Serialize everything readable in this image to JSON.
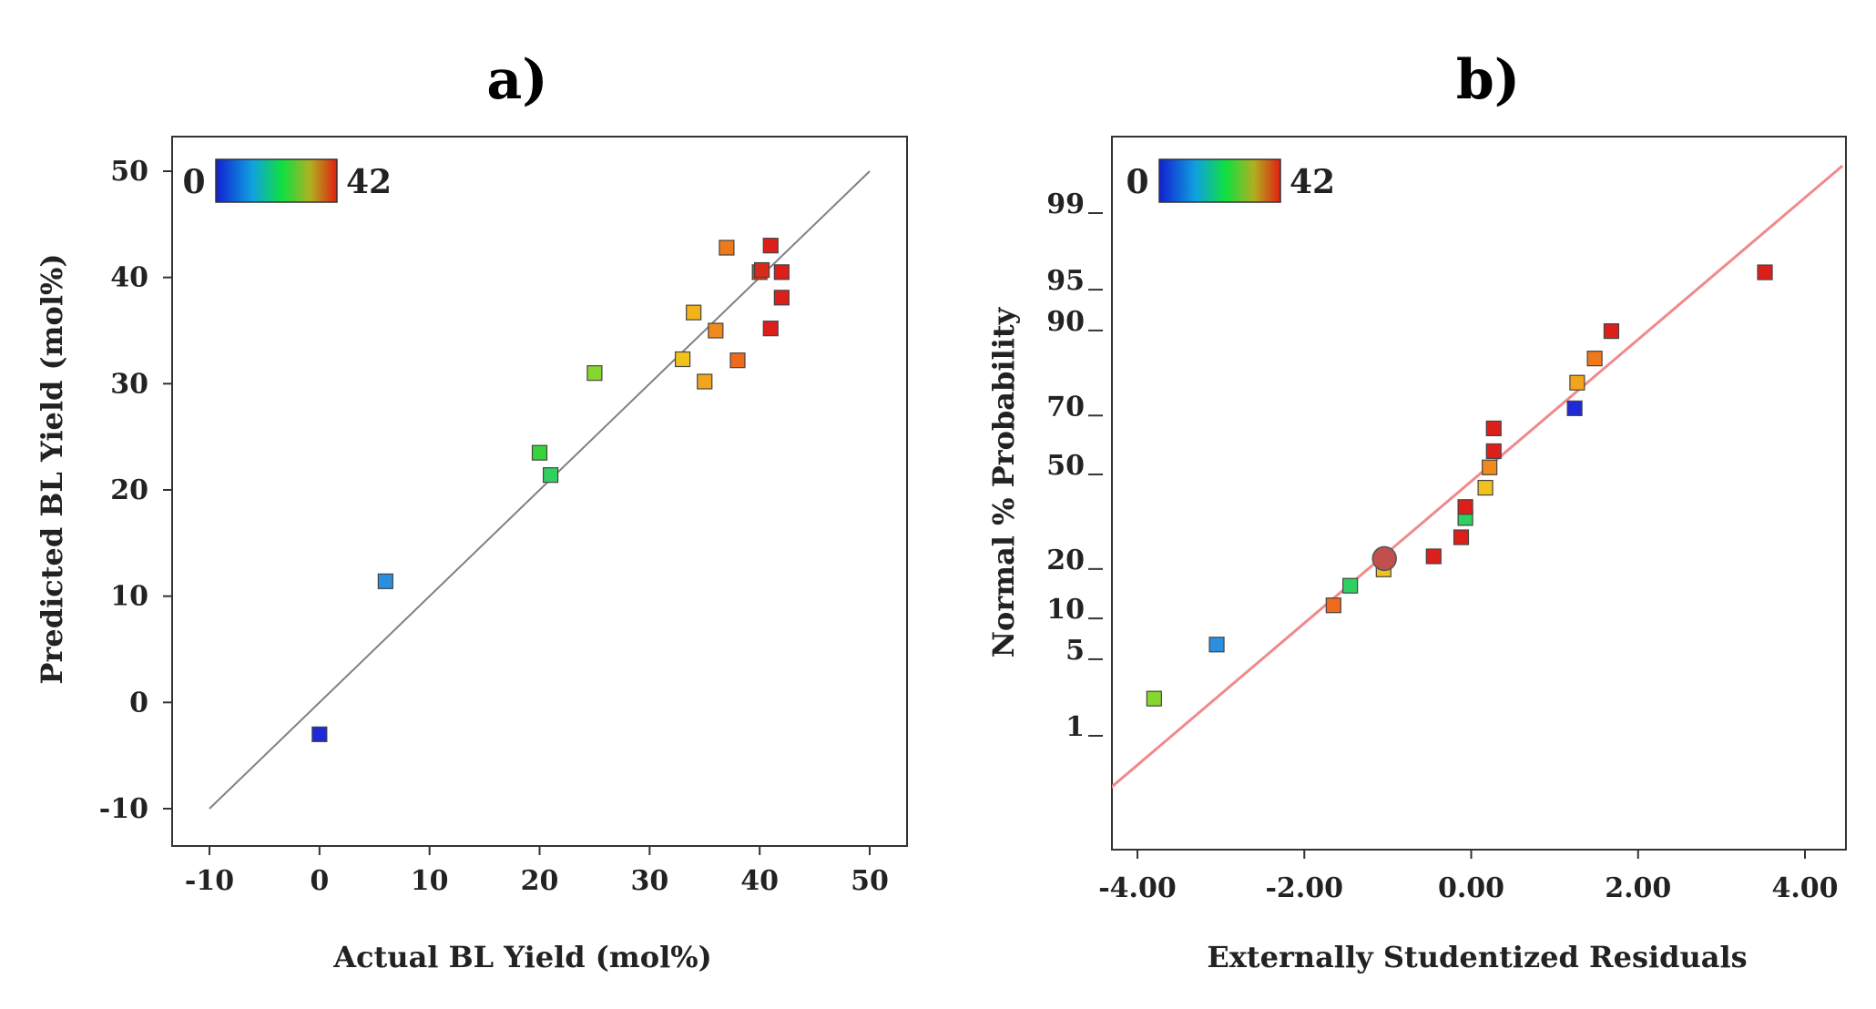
{
  "chart_data": [
    {
      "type": "scatter",
      "panel_label": "a)",
      "xlabel": "Actual BL Yield (mol%)",
      "ylabel": "Predicted BL Yield (mol%)",
      "xlim": [
        -10,
        50
      ],
      "ylim": [
        -10,
        50
      ],
      "x_ticks": [
        -10,
        0,
        10,
        20,
        30,
        40,
        50
      ],
      "y_ticks": [
        -10,
        0,
        10,
        20,
        30,
        40,
        50
      ],
      "reference_line": {
        "from": [
          -10,
          -10
        ],
        "to": [
          50,
          50
        ],
        "color": "#808080"
      },
      "colorbar": {
        "min_label": "0",
        "max_label": "42"
      },
      "points": [
        {
          "x": 0,
          "y": -3,
          "color": "#1f2ad6"
        },
        {
          "x": 6,
          "y": 11.4,
          "color": "#2a8fe0"
        },
        {
          "x": 20,
          "y": 23.5,
          "color": "#36d43a"
        },
        {
          "x": 21,
          "y": 21.4,
          "color": "#2fd060"
        },
        {
          "x": 25,
          "y": 31,
          "color": "#86d630"
        },
        {
          "x": 33,
          "y": 32.3,
          "color": "#f2c21c"
        },
        {
          "x": 34,
          "y": 36.7,
          "color": "#f0b41a"
        },
        {
          "x": 35,
          "y": 30.2,
          "color": "#f2a41c"
        },
        {
          "x": 36,
          "y": 35,
          "color": "#f08a1c"
        },
        {
          "x": 37,
          "y": 42.8,
          "color": "#ee7a1c"
        },
        {
          "x": 38,
          "y": 32.2,
          "color": "#ee6a1c"
        },
        {
          "x": 40,
          "y": 40.5,
          "color": "#e0401c"
        },
        {
          "x": 40.2,
          "y": 40.7,
          "color": "#d82a1a"
        },
        {
          "x": 41,
          "y": 43,
          "color": "#dd1f1a"
        },
        {
          "x": 41,
          "y": 35.2,
          "color": "#dd1f1a"
        },
        {
          "x": 42,
          "y": 40.5,
          "color": "#dd1f1a"
        },
        {
          "x": 42,
          "y": 38.1,
          "color": "#dd1f1a"
        }
      ]
    },
    {
      "type": "scatter",
      "panel_label": "b)",
      "xlabel": "Externally Studentized Residuals",
      "ylabel": "Normal % Probability",
      "xlim": [
        -4.35,
        4.45
      ],
      "y_scale": "normal-probability",
      "x_ticks": [
        "-4.00",
        "-2.00",
        "0.00",
        "2.00",
        "4.00"
      ],
      "y_ticks": [
        "1",
        "5",
        "10",
        "20",
        "50",
        "70",
        "90",
        "95",
        "99"
      ],
      "reference_line": {
        "from": [
          -4.35,
          0.25
        ],
        "to": [
          4.45,
          99.7
        ],
        "color": "#f08a8a"
      },
      "colorbar": {
        "min_label": "0",
        "max_label": "42"
      },
      "points": [
        {
          "x": -3.8,
          "y": 2.3,
          "color": "#86d630"
        },
        {
          "x": -3.05,
          "y": 6.5,
          "color": "#2a8fe0"
        },
        {
          "x": -1.65,
          "y": 12.2,
          "color": "#ee6a1c"
        },
        {
          "x": -1.45,
          "y": 16.1,
          "color": "#2fd060"
        },
        {
          "x": -1.05,
          "y": 19.9,
          "color": "#f2c21c"
        },
        {
          "x": -1.04,
          "y": 22.7,
          "color": "#c0504d",
          "highlight": true
        },
        {
          "x": -0.45,
          "y": 23.3,
          "color": "#dd1f1a"
        },
        {
          "x": -0.12,
          "y": 28.8,
          "color": "#dd1f1a"
        },
        {
          "x": -0.07,
          "y": 34.9,
          "color": "#2fd060"
        },
        {
          "x": -0.07,
          "y": 38.6,
          "color": "#dd1f1a"
        },
        {
          "x": 0.17,
          "y": 45.3,
          "color": "#f2c21c"
        },
        {
          "x": 0.22,
          "y": 52.5,
          "color": "#f08a1c"
        },
        {
          "x": 0.27,
          "y": 58.2,
          "color": "#dd1f1a"
        },
        {
          "x": 0.27,
          "y": 65.9,
          "color": "#dd1f1a"
        },
        {
          "x": 1.24,
          "y": 72.2,
          "color": "#1f2ad6"
        },
        {
          "x": 1.27,
          "y": 79.3,
          "color": "#f2a41c"
        },
        {
          "x": 1.48,
          "y": 84.9,
          "color": "#ee7a1c"
        },
        {
          "x": 1.68,
          "y": 89.9,
          "color": "#dd1f1a"
        },
        {
          "x": 3.52,
          "y": 96.4,
          "color": "#dd1f1a"
        }
      ]
    }
  ]
}
